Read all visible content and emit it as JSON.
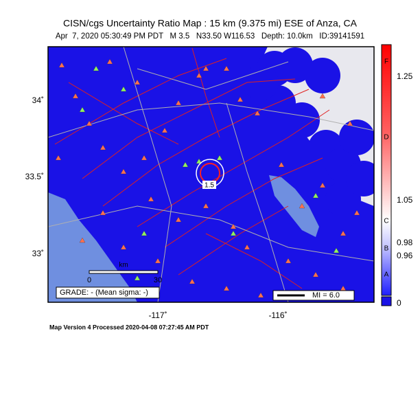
{
  "header": {
    "title": "CISN/cgs Uncertainty Ratio Map : 15 km (9.375 mi) ESE of Anza, CA",
    "subtitle": "Apr  7, 2020 05:30:49 PM PDT   M 3.5   N33.50 W116.53   Depth: 10.0km   ID:39141591"
  },
  "map": {
    "lat_labels": [
      "34˚",
      "33.5˚",
      "33˚"
    ],
    "lon_labels": [
      "-117˚",
      "-116˚"
    ],
    "scale_bar": {
      "unit": "km",
      "start": "0",
      "end": "30"
    },
    "grade": "GRADE: - (Mean sigma: -)",
    "mi_label": "MI = 6.0",
    "contour_labels": [
      "1.5"
    ]
  },
  "colorbar": {
    "values": [
      "1.25",
      "1.05",
      "0.98",
      "0.96",
      "0"
    ],
    "grades": [
      "F",
      "D",
      "C",
      "B",
      "A"
    ]
  },
  "footer": "Map Version 4 Processed 2020-04-08 07:27:45 AM PDT"
}
